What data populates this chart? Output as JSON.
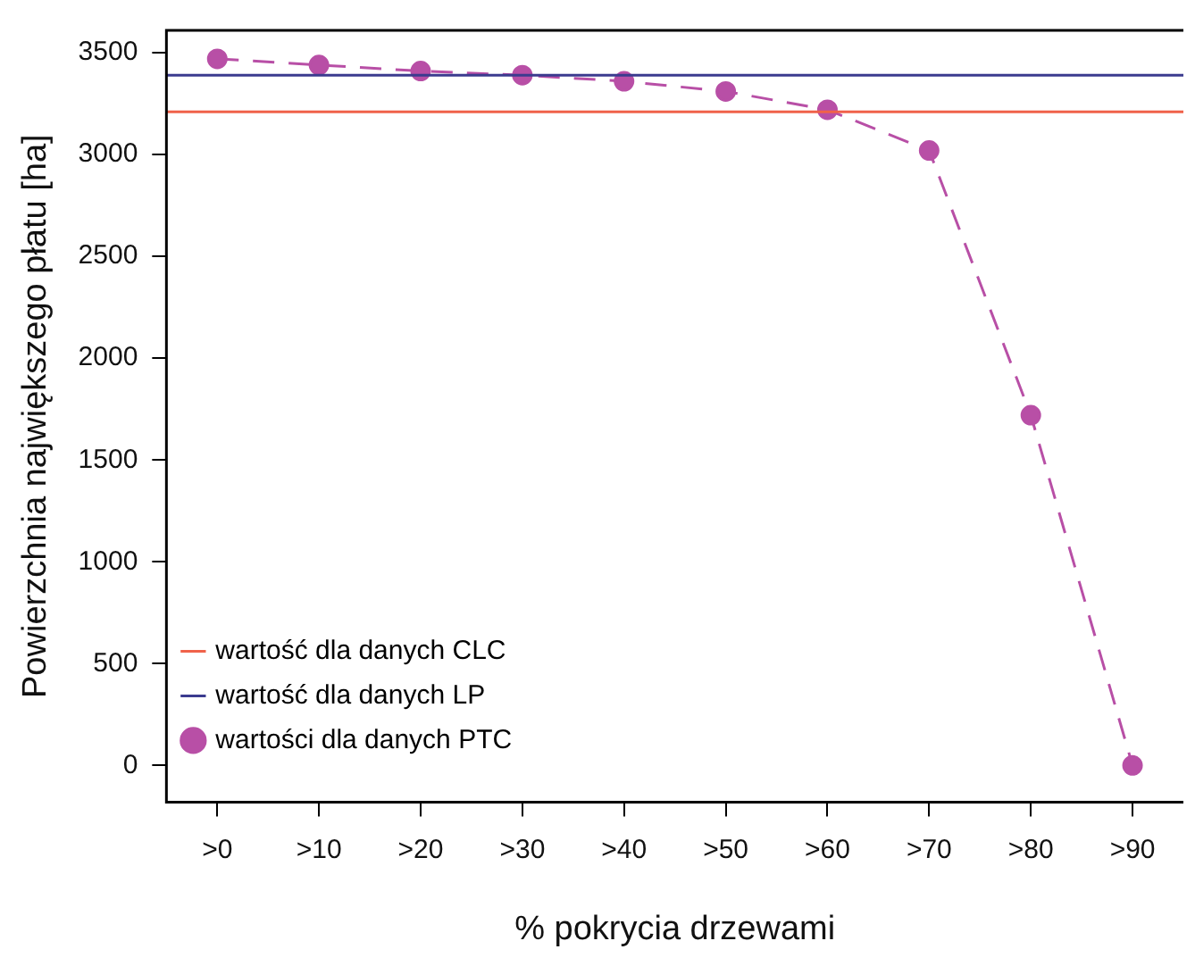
{
  "chart_data": {
    "type": "line",
    "xlabel": "% pokrycia drzewami",
    "ylabel": "Powierzchnia największego płatu [ha]",
    "categories": [
      ">0",
      ">10",
      ">20",
      ">30",
      ">40",
      ">50",
      ">60",
      ">70",
      ">80",
      ">90"
    ],
    "series": [
      {
        "name": "wartości dla danych PTC",
        "color": "#b84fa6",
        "values": [
          3470,
          3440,
          3410,
          3390,
          3360,
          3310,
          3220,
          3020,
          1720,
          0
        ],
        "line_style": "dashed",
        "marker": "circle"
      }
    ],
    "ref_lines": [
      {
        "axis": "y",
        "value": 3210,
        "label": "wartość dla danych CLC",
        "color": "#f0624a",
        "line_style": "solid"
      },
      {
        "axis": "y",
        "value": 3390,
        "label": "wartość dla danych LP",
        "color": "#3b3b8f",
        "line_style": "solid"
      }
    ],
    "ylim": [
      -180,
      3610
    ],
    "yticks": [
      0,
      500,
      1000,
      1500,
      2000,
      2500,
      3000,
      3500
    ],
    "grid": false,
    "legend": "bottom left"
  }
}
